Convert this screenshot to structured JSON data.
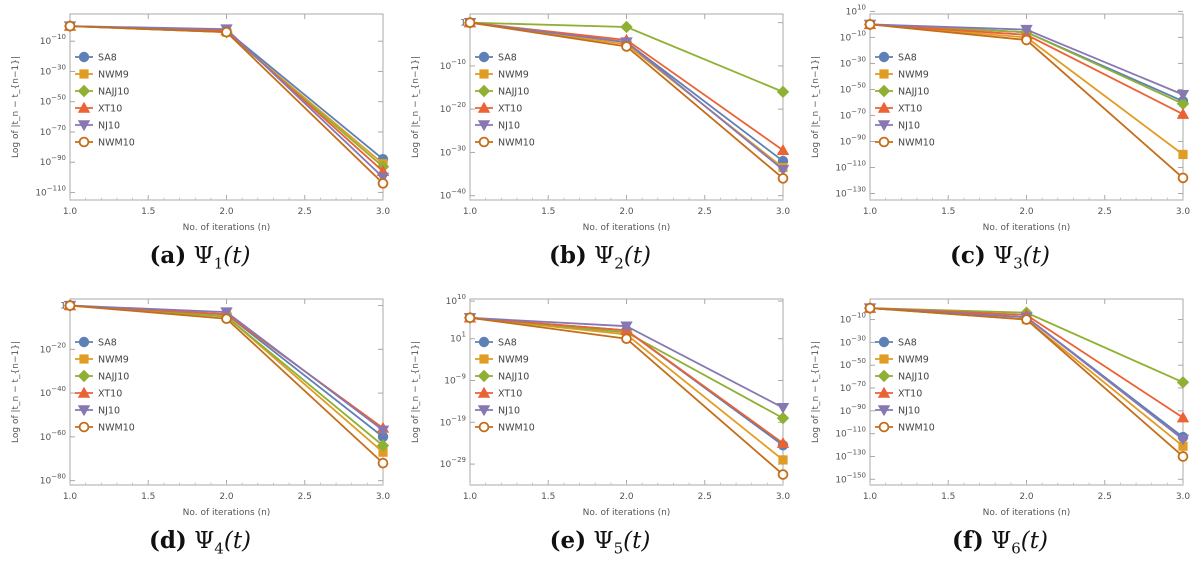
{
  "legend_labels": [
    "SA8",
    "NWM9",
    "NAJJ10",
    "XT10",
    "NJ10",
    "NWM10"
  ],
  "series_colors": [
    "#5e81b5",
    "#e19c24",
    "#8fb032",
    "#eb6235",
    "#8778b3",
    "#c56e1a"
  ],
  "series_markers": [
    "circle",
    "square",
    "diamond",
    "triangle-up",
    "triangle-down",
    "circle-open"
  ],
  "chart_data": [
    {
      "type": "line",
      "caption": {
        "label": "(a)",
        "symbol": "Ψ",
        "sub": "1",
        "arg": "(t)"
      },
      "xlabel": "No. of iterations (n)",
      "ylabel": "Log of |t_n − t_{n−1}|",
      "log_y": true,
      "xlim": [
        1.0,
        3.0
      ],
      "ylim_exp": [
        -115,
        8
      ],
      "x_ticks": [
        "1.0",
        "1.5",
        "2.0",
        "2.5",
        "3.0"
      ],
      "y_ticks": [
        {
          "exp": -10
        },
        {
          "exp": -30
        },
        {
          "exp": -50
        },
        {
          "exp": -70
        },
        {
          "exp": -90
        },
        {
          "exp": -110
        }
      ],
      "x": [
        1,
        2,
        3
      ],
      "series": [
        {
          "name": "SA8",
          "values_exp": [
            0,
            -3,
            -88
          ]
        },
        {
          "name": "NWM9",
          "values_exp": [
            0,
            -4,
            -91
          ]
        },
        {
          "name": "NAJJ10",
          "values_exp": [
            0,
            -4,
            -93
          ]
        },
        {
          "name": "XT10",
          "values_exp": [
            0,
            -3,
            -96
          ]
        },
        {
          "name": "NJ10",
          "values_exp": [
            0,
            -2,
            -100
          ]
        },
        {
          "name": "NWM10",
          "values_exp": [
            0,
            -4,
            -104
          ]
        }
      ]
    },
    {
      "type": "line",
      "caption": {
        "label": "(b)",
        "symbol": "Ψ",
        "sub": "2",
        "arg": "(t)"
      },
      "xlabel": "No. of iterations (n)",
      "ylabel": "Log of |t_n − t_{n−1}|",
      "log_y": true,
      "xlim": [
        1.0,
        3.0
      ],
      "ylim_exp": [
        -41,
        2
      ],
      "x_ticks": [
        "1.0",
        "1.5",
        "2.0",
        "2.5",
        "3.0"
      ],
      "y_ticks": [
        {
          "exp": 0,
          "label": "1"
        },
        {
          "exp": -10
        },
        {
          "exp": -20
        },
        {
          "exp": -30
        },
        {
          "exp": -40
        }
      ],
      "x": [
        1,
        2,
        3
      ],
      "series": [
        {
          "name": "SA8",
          "values_exp": [
            0,
            -4.5,
            -32
          ]
        },
        {
          "name": "NWM9",
          "values_exp": [
            0,
            -5,
            -33.5
          ]
        },
        {
          "name": "NAJJ10",
          "values_exp": [
            0,
            -1,
            -16
          ]
        },
        {
          "name": "XT10",
          "values_exp": [
            0,
            -4,
            -29.5
          ]
        },
        {
          "name": "NJ10",
          "values_exp": [
            0,
            -4.5,
            -34
          ]
        },
        {
          "name": "NWM10",
          "values_exp": [
            0,
            -5.5,
            -36
          ]
        }
      ]
    },
    {
      "type": "line",
      "caption": {
        "label": "(c)",
        "symbol": "Ψ",
        "sub": "3",
        "arg": "(t)"
      },
      "xlabel": "No. of iterations (n)",
      "ylabel": "Log of |t_n − t_{n−1}|",
      "log_y": true,
      "xlim": [
        1.0,
        3.0
      ],
      "ylim_exp": [
        -135,
        8
      ],
      "x_ticks": [
        "1.0",
        "1.5",
        "2.0",
        "2.5",
        "3.0"
      ],
      "y_ticks": [
        {
          "exp": 10
        },
        {
          "exp": -10
        },
        {
          "exp": -30
        },
        {
          "exp": -50
        },
        {
          "exp": -70
        },
        {
          "exp": -90
        },
        {
          "exp": -110
        },
        {
          "exp": -130
        }
      ],
      "x": [
        1,
        2,
        3
      ],
      "series": [
        {
          "name": "SA8",
          "values_exp": [
            0,
            -6,
            -59
          ]
        },
        {
          "name": "NWM9",
          "values_exp": [
            0,
            -10,
            -100
          ]
        },
        {
          "name": "NAJJ10",
          "values_exp": [
            0,
            -6,
            -61
          ]
        },
        {
          "name": "XT10",
          "values_exp": [
            0,
            -8,
            -69
          ]
        },
        {
          "name": "NJ10",
          "values_exp": [
            0,
            -4,
            -54
          ]
        },
        {
          "name": "NWM10",
          "values_exp": [
            0,
            -12,
            -118
          ]
        }
      ]
    },
    {
      "type": "line",
      "caption": {
        "label": "(d)",
        "symbol": "Ψ",
        "sub": "4",
        "arg": "(t)"
      },
      "xlabel": "No. of iterations (n)",
      "ylabel": "Log of |t_n − t_{n−1}|",
      "log_y": true,
      "xlim": [
        1.0,
        3.0
      ],
      "ylim_exp": [
        -82,
        3
      ],
      "x_ticks": [
        "1.0",
        "1.5",
        "2.0",
        "2.5",
        "3.0"
      ],
      "y_ticks": [
        {
          "exp": 0,
          "label": "1"
        },
        {
          "exp": -20
        },
        {
          "exp": -40
        },
        {
          "exp": -60
        },
        {
          "exp": -80
        }
      ],
      "x": [
        1,
        2,
        3
      ],
      "series": [
        {
          "name": "SA8",
          "values_exp": [
            0,
            -4,
            -60
          ]
        },
        {
          "name": "NWM9",
          "values_exp": [
            0,
            -5,
            -67
          ]
        },
        {
          "name": "NAJJ10",
          "values_exp": [
            0,
            -5,
            -64
          ]
        },
        {
          "name": "XT10",
          "values_exp": [
            0,
            -4,
            -56
          ]
        },
        {
          "name": "NJ10",
          "values_exp": [
            0,
            -3,
            -57
          ]
        },
        {
          "name": "NWM10",
          "values_exp": [
            0,
            -6,
            -72
          ]
        }
      ]
    },
    {
      "type": "line",
      "caption": {
        "label": "(e)",
        "symbol": "Ψ",
        "sub": "5",
        "arg": "(t)"
      },
      "xlabel": "No. of iterations (n)",
      "ylabel": "Log of |t_n − t_{n−1}|",
      "log_y": true,
      "xlim": [
        1.0,
        3.0
      ],
      "ylim_exp": [
        -34,
        10.5
      ],
      "x_ticks": [
        "1.0",
        "1.5",
        "2.0",
        "2.5",
        "3.0"
      ],
      "y_ticks": [
        {
          "exp": 10
        },
        {
          "exp": 1
        },
        {
          "exp": -9
        },
        {
          "exp": -19
        },
        {
          "exp": -29
        }
      ],
      "x": [
        1,
        2,
        3
      ],
      "series": [
        {
          "name": "SA8",
          "values_exp": [
            6,
            3,
            -24.5
          ]
        },
        {
          "name": "NWM9",
          "values_exp": [
            6,
            2,
            -28
          ]
        },
        {
          "name": "NAJJ10",
          "values_exp": [
            6,
            2.5,
            -18
          ]
        },
        {
          "name": "XT10",
          "values_exp": [
            6,
            3,
            -24
          ]
        },
        {
          "name": "NJ10",
          "values_exp": [
            6,
            4,
            -15.5
          ]
        },
        {
          "name": "NWM10",
          "values_exp": [
            6,
            1,
            -31.5
          ]
        }
      ]
    },
    {
      "type": "line",
      "caption": {
        "label": "(f)",
        "symbol": "Ψ",
        "sub": "6",
        "arg": "(t)"
      },
      "xlabel": "No. of iterations (n)",
      "ylabel": "Log of |t_n − t_{n−1}|",
      "log_y": true,
      "xlim": [
        1.0,
        3.0
      ],
      "ylim_exp": [
        -155,
        8
      ],
      "x_ticks": [
        "1.0",
        "1.5",
        "2.0",
        "2.5",
        "3.0"
      ],
      "y_ticks": [
        {
          "exp": -10
        },
        {
          "exp": -30
        },
        {
          "exp": -50
        },
        {
          "exp": -70
        },
        {
          "exp": -90
        },
        {
          "exp": -110
        },
        {
          "exp": -130
        },
        {
          "exp": -150
        }
      ],
      "x": [
        1,
        2,
        3
      ],
      "series": [
        {
          "name": "SA8",
          "values_exp": [
            0,
            -8,
            -113
          ]
        },
        {
          "name": "NWM9",
          "values_exp": [
            0,
            -10,
            -121
          ]
        },
        {
          "name": "NAJJ10",
          "values_exp": [
            0,
            -4,
            -65
          ]
        },
        {
          "name": "XT10",
          "values_exp": [
            0,
            -6,
            -96
          ]
        },
        {
          "name": "NJ10",
          "values_exp": [
            0,
            -8,
            -115
          ]
        },
        {
          "name": "NWM10",
          "values_exp": [
            0,
            -10,
            -130
          ]
        }
      ]
    }
  ]
}
